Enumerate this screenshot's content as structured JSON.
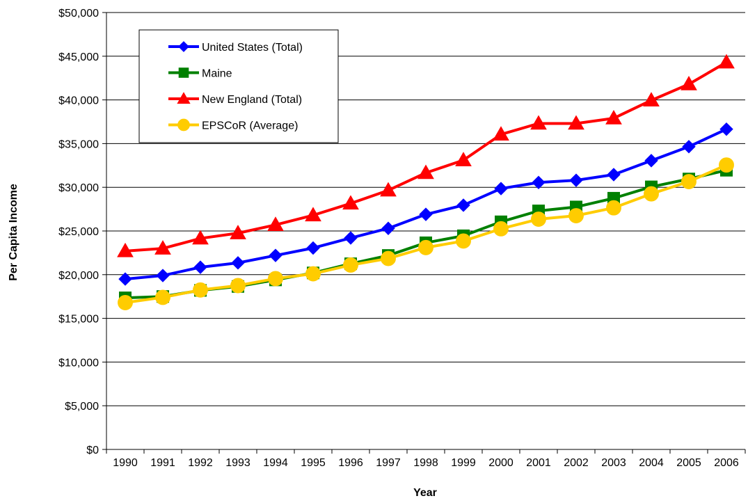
{
  "chart_data": {
    "type": "line",
    "title": "",
    "xlabel": "Year",
    "ylabel": "Per Capita Income",
    "ylim": [
      0,
      50000
    ],
    "ytick_step": 5000,
    "ytick_labels": [
      "$0",
      "$5,000",
      "$10,000",
      "$15,000",
      "$20,000",
      "$25,000",
      "$30,000",
      "$35,000",
      "$40,000",
      "$45,000",
      "$50,000"
    ],
    "grid": "horizontal",
    "legend_position": "top-left",
    "categories": [
      "1990",
      "1991",
      "1992",
      "1993",
      "1994",
      "1995",
      "1996",
      "1997",
      "1998",
      "1999",
      "2000",
      "2001",
      "2002",
      "2003",
      "2004",
      "2005",
      "2006"
    ],
    "series": [
      {
        "name": "United States (Total)",
        "color": "#0000FF",
        "marker": "diamond",
        "values": [
          19500,
          19900,
          20850,
          21350,
          22200,
          23050,
          24200,
          25300,
          26900,
          27950,
          29850,
          30550,
          30800,
          31450,
          33050,
          34650,
          36650
        ]
      },
      {
        "name": "Maine",
        "color": "#008000",
        "marker": "square",
        "values": [
          17350,
          17500,
          18200,
          18650,
          19400,
          20200,
          21250,
          22200,
          23650,
          24450,
          26050,
          27300,
          27750,
          28750,
          30050,
          30950,
          31950
        ]
      },
      {
        "name": "New England (Total)",
        "color": "#FF0000",
        "marker": "triangle",
        "values": [
          22700,
          23000,
          24150,
          24750,
          25700,
          26800,
          28150,
          29650,
          31650,
          33100,
          36050,
          37300,
          37300,
          37900,
          39950,
          41800,
          44300
        ]
      },
      {
        "name": "EPSCoR (Average)",
        "color": "#FFCC00",
        "marker": "circle",
        "values": [
          16800,
          17400,
          18250,
          18750,
          19550,
          20100,
          21100,
          21850,
          23100,
          23850,
          25250,
          26350,
          26750,
          27650,
          29250,
          30650,
          32550
        ]
      }
    ]
  }
}
